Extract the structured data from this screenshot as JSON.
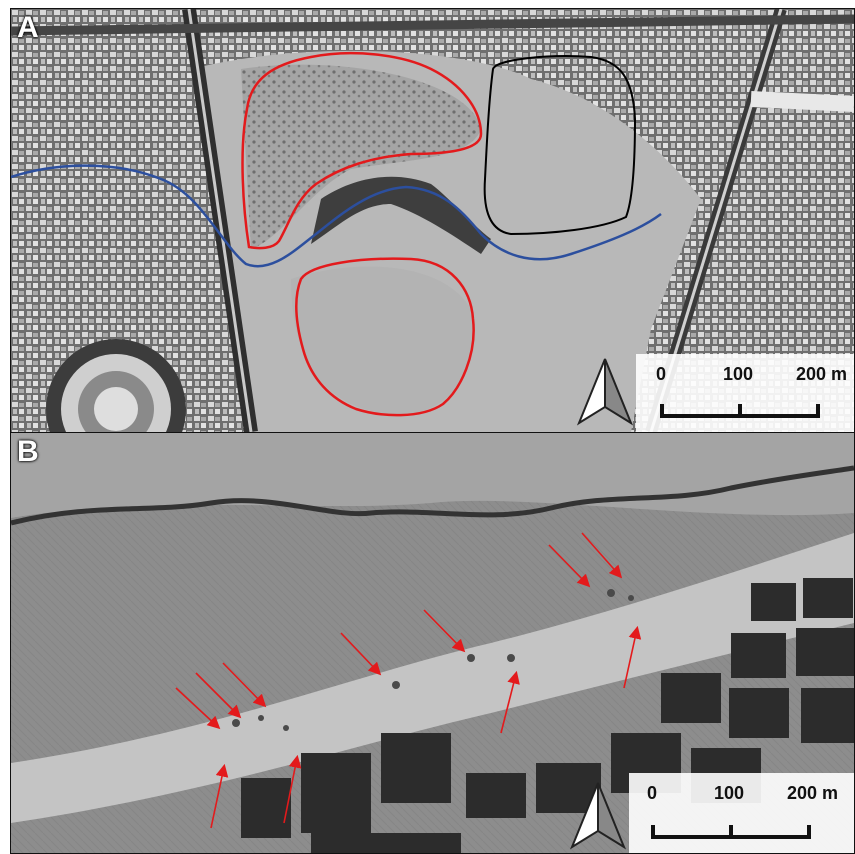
{
  "panels": [
    {
      "label": "A",
      "scale_bar": {
        "ticks": [
          "0",
          "100",
          "200 m"
        ]
      },
      "north_arrow": "north-arrow-icon",
      "outline_colors": {
        "red": "#e31a1c",
        "black": "#000000",
        "river": "#2c4f9e"
      }
    },
    {
      "label": "B",
      "scale_bar": {
        "ticks": [
          "0",
          "100",
          "200 m"
        ]
      },
      "north_arrow": "north-arrow-icon",
      "arrow_color": "#e31a1c"
    }
  ]
}
